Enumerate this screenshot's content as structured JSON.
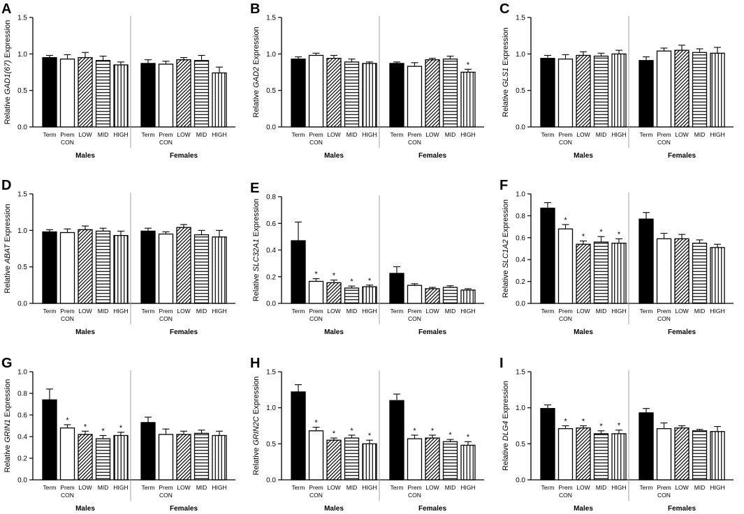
{
  "chart_data": [
    {
      "type": "bar",
      "letter": "A",
      "gene": "GAD1(67)",
      "ylabel_prefix": "Relative ",
      "ylabel_suffix": " Expression",
      "ylim": [
        0,
        1.5
      ],
      "yticks": [
        "0.0",
        "0.5",
        "1.0",
        "1.5"
      ],
      "groups": [
        "Males",
        "Females"
      ],
      "categories": [
        "Term",
        "Prem CON",
        "LOW",
        "MID",
        "HIGH"
      ],
      "series": [
        {
          "name": "Males",
          "values": [
            0.95,
            0.93,
            0.95,
            0.91,
            0.85
          ],
          "errors": [
            0.03,
            0.06,
            0.07,
            0.06,
            0.04
          ],
          "sig": [
            "",
            "",
            "",
            "",
            ""
          ]
        },
        {
          "name": "Females",
          "values": [
            0.87,
            0.86,
            0.92,
            0.91,
            0.74
          ],
          "errors": [
            0.05,
            0.04,
            0.03,
            0.07,
            0.08
          ],
          "sig": [
            "",
            "",
            "",
            "",
            ""
          ]
        }
      ]
    },
    {
      "type": "bar",
      "letter": "B",
      "gene": "GAD2",
      "ylabel_prefix": "Relative ",
      "ylabel_suffix": " Expression",
      "ylim": [
        0,
        1.5
      ],
      "yticks": [
        "0.0",
        "0.5",
        "1.0",
        "1.5"
      ],
      "groups": [
        "Males",
        "Females"
      ],
      "categories": [
        "Term",
        "Prem CON",
        "LOW",
        "MID",
        "HIGH"
      ],
      "series": [
        {
          "name": "Males",
          "values": [
            0.93,
            0.98,
            0.94,
            0.89,
            0.87
          ],
          "errors": [
            0.03,
            0.03,
            0.04,
            0.04,
            0.02
          ],
          "sig": [
            "",
            "",
            "",
            "",
            ""
          ]
        },
        {
          "name": "Females",
          "values": [
            0.87,
            0.83,
            0.92,
            0.93,
            0.75
          ],
          "errors": [
            0.02,
            0.05,
            0.02,
            0.04,
            0.04
          ],
          "sig": [
            "",
            "",
            "",
            "",
            "*"
          ]
        }
      ]
    },
    {
      "type": "bar",
      "letter": "C",
      "gene": "GLS1",
      "ylabel_prefix": "Relative ",
      "ylabel_suffix": " Expression",
      "ylim": [
        0,
        1.5
      ],
      "yticks": [
        "0.0",
        "0.5",
        "1.0",
        "1.5"
      ],
      "groups": [
        "Males",
        "Females"
      ],
      "categories": [
        "Term",
        "Prem CON",
        "LOW",
        "MID",
        "HIGH"
      ],
      "series": [
        {
          "name": "Males",
          "values": [
            0.94,
            0.93,
            0.98,
            0.97,
            1.0
          ],
          "errors": [
            0.04,
            0.06,
            0.05,
            0.04,
            0.05
          ],
          "sig": [
            "",
            "",
            "",
            "",
            ""
          ]
        },
        {
          "name": "Females",
          "values": [
            0.91,
            1.04,
            1.05,
            1.02,
            1.01
          ],
          "errors": [
            0.05,
            0.04,
            0.07,
            0.05,
            0.08
          ],
          "sig": [
            "",
            "",
            "",
            "",
            ""
          ]
        }
      ]
    },
    {
      "type": "bar",
      "letter": "D",
      "gene": "ABAT",
      "ylabel_prefix": "Relative ",
      "ylabel_suffix": " Expression",
      "ylim": [
        0,
        1.5
      ],
      "yticks": [
        "0.0",
        "0.5",
        "1.0",
        "1.5"
      ],
      "groups": [
        "Males",
        "Females"
      ],
      "categories": [
        "Term",
        "Prem CON",
        "LOW",
        "MID",
        "HIGH"
      ],
      "series": [
        {
          "name": "Males",
          "values": [
            0.98,
            0.97,
            1.01,
            0.99,
            0.93
          ],
          "errors": [
            0.03,
            0.05,
            0.05,
            0.04,
            0.06
          ],
          "sig": [
            "",
            "",
            "",
            "",
            ""
          ]
        },
        {
          "name": "Females",
          "values": [
            0.99,
            0.95,
            1.04,
            0.94,
            0.91
          ],
          "errors": [
            0.04,
            0.03,
            0.04,
            0.06,
            0.09
          ],
          "sig": [
            "",
            "",
            "",
            "",
            ""
          ]
        }
      ]
    },
    {
      "type": "bar",
      "letter": "E",
      "gene": "SLC32A1",
      "ylabel_prefix": "Relative ",
      "ylabel_suffix": " Expression",
      "ylim": [
        0,
        0.8
      ],
      "yticks": [
        "0.0",
        "0.2",
        "0.4",
        "0.6",
        "0.8"
      ],
      "groups": [
        "Males",
        "Females"
      ],
      "categories": [
        "Term",
        "Prem CON",
        "LOW",
        "MID",
        "HIGH"
      ],
      "series": [
        {
          "name": "Males",
          "values": [
            0.47,
            0.165,
            0.155,
            0.115,
            0.125
          ],
          "errors": [
            0.14,
            0.02,
            0.02,
            0.015,
            0.012
          ],
          "sig": [
            "",
            "*",
            "*",
            "*",
            "*"
          ]
        },
        {
          "name": "Females",
          "values": [
            0.225,
            0.135,
            0.11,
            0.12,
            0.1
          ],
          "errors": [
            0.05,
            0.012,
            0.01,
            0.012,
            0.01
          ],
          "sig": [
            "",
            "",
            "",
            "",
            ""
          ]
        }
      ]
    },
    {
      "type": "bar",
      "letter": "F",
      "gene": "SLC1A2",
      "ylabel_prefix": "Relative ",
      "ylabel_suffix": " Expression",
      "ylim": [
        0,
        1.0
      ],
      "yticks": [
        "0.0",
        "0.2",
        "0.4",
        "0.6",
        "0.8",
        "1.0"
      ],
      "groups": [
        "Males",
        "Females"
      ],
      "categories": [
        "Term",
        "Prem CON",
        "LOW",
        "MID",
        "HIGH"
      ],
      "series": [
        {
          "name": "Males",
          "values": [
            0.87,
            0.68,
            0.54,
            0.56,
            0.55
          ],
          "errors": [
            0.05,
            0.04,
            0.03,
            0.05,
            0.04
          ],
          "sig": [
            "",
            "*",
            "*",
            "*",
            "*"
          ]
        },
        {
          "name": "Females",
          "values": [
            0.77,
            0.59,
            0.59,
            0.55,
            0.51
          ],
          "errors": [
            0.06,
            0.05,
            0.04,
            0.03,
            0.03
          ],
          "sig": [
            "",
            "",
            "",
            "",
            ""
          ]
        }
      ]
    },
    {
      "type": "bar",
      "letter": "G",
      "gene": "GRIN1",
      "ylabel_prefix": "Relative ",
      "ylabel_suffix": " Expression",
      "ylim": [
        0,
        1.0
      ],
      "yticks": [
        "0.0",
        "0.2",
        "0.4",
        "0.6",
        "0.8",
        "1.0"
      ],
      "groups": [
        "Males",
        "Females"
      ],
      "categories": [
        "Term",
        "Prem CON",
        "LOW",
        "MID",
        "HIGH"
      ],
      "series": [
        {
          "name": "Males",
          "values": [
            0.74,
            0.48,
            0.42,
            0.38,
            0.41
          ],
          "errors": [
            0.1,
            0.03,
            0.03,
            0.03,
            0.03
          ],
          "sig": [
            "",
            "*",
            "*",
            "*",
            "*"
          ]
        },
        {
          "name": "Females",
          "values": [
            0.53,
            0.42,
            0.42,
            0.43,
            0.41
          ],
          "errors": [
            0.05,
            0.05,
            0.03,
            0.03,
            0.04
          ],
          "sig": [
            "",
            "",
            "",
            "",
            ""
          ]
        }
      ]
    },
    {
      "type": "bar",
      "letter": "H",
      "gene": "GRIN2C",
      "ylabel_prefix": "Relative ",
      "ylabel_suffix": " Expression",
      "ylim": [
        0,
        1.5
      ],
      "yticks": [
        "0.0",
        "0.5",
        "1.0",
        "1.5"
      ],
      "groups": [
        "Males",
        "Females"
      ],
      "categories": [
        "Term",
        "Prem CON",
        "LOW",
        "MID",
        "HIGH"
      ],
      "series": [
        {
          "name": "Males",
          "values": [
            1.22,
            0.68,
            0.55,
            0.58,
            0.5
          ],
          "errors": [
            0.1,
            0.05,
            0.03,
            0.04,
            0.05
          ],
          "sig": [
            "",
            "*",
            "*",
            "*",
            "*"
          ]
        },
        {
          "name": "Females",
          "values": [
            1.1,
            0.57,
            0.58,
            0.53,
            0.48
          ],
          "errors": [
            0.09,
            0.05,
            0.04,
            0.03,
            0.05
          ],
          "sig": [
            "",
            "*",
            "*",
            "*",
            "*"
          ]
        }
      ]
    },
    {
      "type": "bar",
      "letter": "I",
      "gene": "DLG4",
      "ylabel_prefix": "Relative ",
      "ylabel_suffix": " Expression",
      "ylim": [
        0,
        1.5
      ],
      "yticks": [
        "0.0",
        "0.5",
        "1.0",
        "1.5"
      ],
      "groups": [
        "Males",
        "Females"
      ],
      "categories": [
        "Term",
        "Prem CON",
        "LOW",
        "MID",
        "HIGH"
      ],
      "series": [
        {
          "name": "Males",
          "values": [
            0.99,
            0.71,
            0.72,
            0.64,
            0.64
          ],
          "errors": [
            0.05,
            0.04,
            0.03,
            0.04,
            0.05
          ],
          "sig": [
            "",
            "*",
            "*",
            "*",
            "*"
          ]
        },
        {
          "name": "Females",
          "values": [
            0.93,
            0.71,
            0.72,
            0.68,
            0.67
          ],
          "errors": [
            0.06,
            0.08,
            0.03,
            0.02,
            0.07
          ],
          "sig": [
            "",
            "",
            "",
            "",
            ""
          ]
        }
      ]
    }
  ],
  "style": {
    "bar_stroke": "#000000",
    "term_fill": "#000000",
    "background": "#ffffff",
    "divider": "#999999"
  }
}
